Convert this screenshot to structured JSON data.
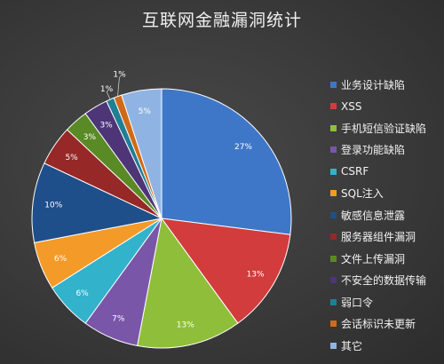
{
  "chart_data": {
    "type": "pie",
    "title": "互联网金融漏洞统计",
    "legend_position": "right",
    "slices": [
      {
        "label": "业务设计缺陷",
        "value": 27,
        "display": "27%",
        "color": "#3f77c8"
      },
      {
        "label": "XSS",
        "value": 13,
        "display": "13%",
        "color": "#d23c3c"
      },
      {
        "label": "手机短信验证缺陷",
        "value": 13,
        "display": "13%",
        "color": "#8fbf3a"
      },
      {
        "label": "登录功能缺陷",
        "value": 7,
        "display": "7%",
        "color": "#7a56a8"
      },
      {
        "label": "CSRF",
        "value": 6,
        "display": "6%",
        "color": "#33b2cc"
      },
      {
        "label": "SQL注入",
        "value": 6,
        "display": "6%",
        "color": "#f39a28"
      },
      {
        "label": "敏感信息泄露",
        "value": 10,
        "display": "10%",
        "color": "#1f4f8a"
      },
      {
        "label": "服务器组件漏洞",
        "value": 5,
        "display": "5%",
        "color": "#962828"
      },
      {
        "label": "文件上传漏洞",
        "value": 3,
        "display": "3%",
        "color": "#5a8a26"
      },
      {
        "label": "不安全的数据传输",
        "value": 3,
        "display": "3%",
        "color": "#4e3578"
      },
      {
        "label": "弱口令",
        "value": 1,
        "display": "1%",
        "color": "#1f7f96"
      },
      {
        "label": "会话标识未更新",
        "value": 1,
        "display": "1%",
        "color": "#d06a18"
      },
      {
        "label": "其它",
        "value": 5,
        "display": "5%",
        "color": "#8fb4e3"
      }
    ]
  }
}
